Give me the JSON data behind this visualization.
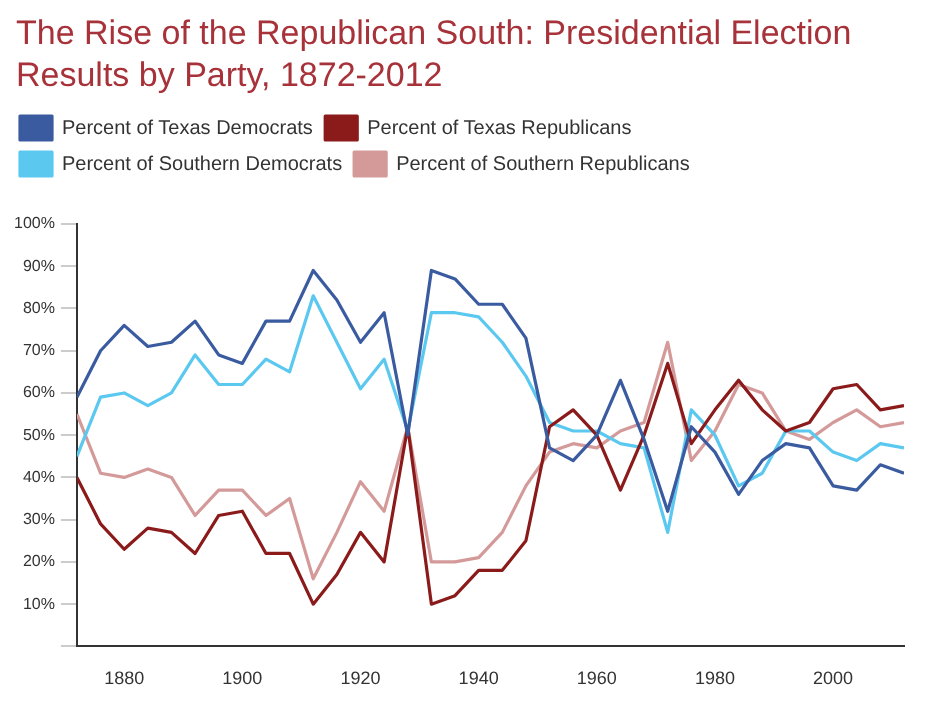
{
  "chart_data": {
    "type": "line",
    "title": "The Rise of the Republican South: Presidential Election Results by Party, 1872-2012",
    "x": [
      1872,
      1876,
      1880,
      1884,
      1888,
      1892,
      1896,
      1900,
      1904,
      1908,
      1912,
      1916,
      1920,
      1924,
      1928,
      1932,
      1936,
      1940,
      1944,
      1948,
      1952,
      1956,
      1960,
      1964,
      1968,
      1972,
      1976,
      1980,
      1984,
      1988,
      1992,
      1996,
      2000,
      2004,
      2008,
      2012
    ],
    "series": [
      {
        "name": "Percent of Texas Democrats",
        "color": "#3a5ba0",
        "values": [
          59,
          70,
          76,
          71,
          72,
          77,
          69,
          67,
          77,
          77,
          89,
          82,
          72,
          79,
          50,
          89,
          87,
          81,
          81,
          73,
          47,
          44,
          50,
          63,
          49,
          32,
          52,
          46,
          36,
          44,
          48,
          47,
          38,
          37,
          43,
          41
        ]
      },
      {
        "name": "Percent of Texas Republicans",
        "color": "#8b1a1a",
        "values": [
          40,
          29,
          23,
          28,
          27,
          22,
          31,
          32,
          22,
          22,
          10,
          17,
          27,
          20,
          52,
          10,
          12,
          18,
          18,
          25,
          52,
          56,
          50,
          37,
          50,
          67,
          48,
          56,
          63,
          56,
          51,
          53,
          61,
          62,
          56,
          57
        ]
      },
      {
        "name": "Percent of Southern Democrats",
        "color": "#5bc8f0",
        "values": [
          45,
          59,
          60,
          57,
          60,
          69,
          62,
          62,
          68,
          65,
          83,
          72,
          61,
          68,
          51,
          79,
          79,
          78,
          72,
          64,
          53,
          51,
          51,
          48,
          47,
          27,
          56,
          50,
          38,
          41,
          51,
          51,
          46,
          44,
          48,
          47
        ]
      },
      {
        "name": "Percent of Southern Republicans",
        "color": "#d49a9a",
        "values": [
          55,
          41,
          40,
          42,
          40,
          31,
          37,
          37,
          31,
          35,
          16,
          27,
          39,
          32,
          52,
          20,
          20,
          21,
          27,
          38,
          46,
          48,
          47,
          51,
          53,
          72,
          44,
          51,
          62,
          60,
          51,
          49,
          53,
          56,
          52,
          53
        ]
      }
    ],
    "xlim": [
      1872,
      2012
    ],
    "xticks": [
      1880,
      1900,
      1920,
      1940,
      1960,
      1980,
      2000
    ],
    "ylim": [
      0,
      100
    ],
    "yticks": [
      {
        "value": 0,
        "label": null
      },
      {
        "value": 10,
        "label": "10%"
      },
      {
        "value": 20,
        "label": "20%"
      },
      {
        "value": 30,
        "label": "30%"
      },
      {
        "value": 40,
        "label": "40%"
      },
      {
        "value": 50,
        "label": "50%"
      },
      {
        "value": 60,
        "label": "60%"
      },
      {
        "value": 70,
        "label": "70%"
      },
      {
        "value": 80,
        "label": "80%"
      },
      {
        "value": 90,
        "label": "90%"
      },
      {
        "value": 100,
        "label": "100%"
      }
    ],
    "grid": false,
    "legend": "top",
    "marker": "none",
    "line_style": "solid"
  }
}
